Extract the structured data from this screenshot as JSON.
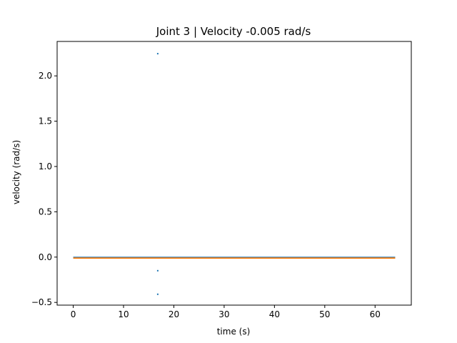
{
  "chart_data": {
    "type": "scatter",
    "title": "Joint 3 | Velocity -0.005 rad/s",
    "xlabel": "time (s)",
    "ylabel": "velocity (rad/s)",
    "xlim": [
      -3.2,
      67.2
    ],
    "ylim": [
      -0.53,
      2.38
    ],
    "x_ticks": [
      0,
      10,
      20,
      30,
      40,
      50,
      60
    ],
    "y_ticks": [
      -0.5,
      0.0,
      0.5,
      1.0,
      1.5,
      2.0
    ],
    "x_tick_labels": [
      "0",
      "10",
      "20",
      "30",
      "40",
      "50",
      "60"
    ],
    "y_tick_labels": [
      "−0.5",
      "0.0",
      "0.5",
      "1.0",
      "1.5",
      "2.0"
    ],
    "grid": false,
    "series": [
      {
        "color": "#1f77b4",
        "band": {
          "x_start": 0,
          "x_end": 64,
          "y_min": -0.008,
          "y_max": 0.004
        },
        "points": [
          {
            "x": 16.8,
            "y": 2.245
          },
          {
            "x": 16.8,
            "y": -0.15
          },
          {
            "x": 16.8,
            "y": -0.41
          }
        ]
      },
      {
        "color": "#ff7f0e",
        "band": {
          "x_start": 0,
          "x_end": 64,
          "y_min": -0.018,
          "y_max": -0.004
        },
        "points": []
      }
    ]
  }
}
